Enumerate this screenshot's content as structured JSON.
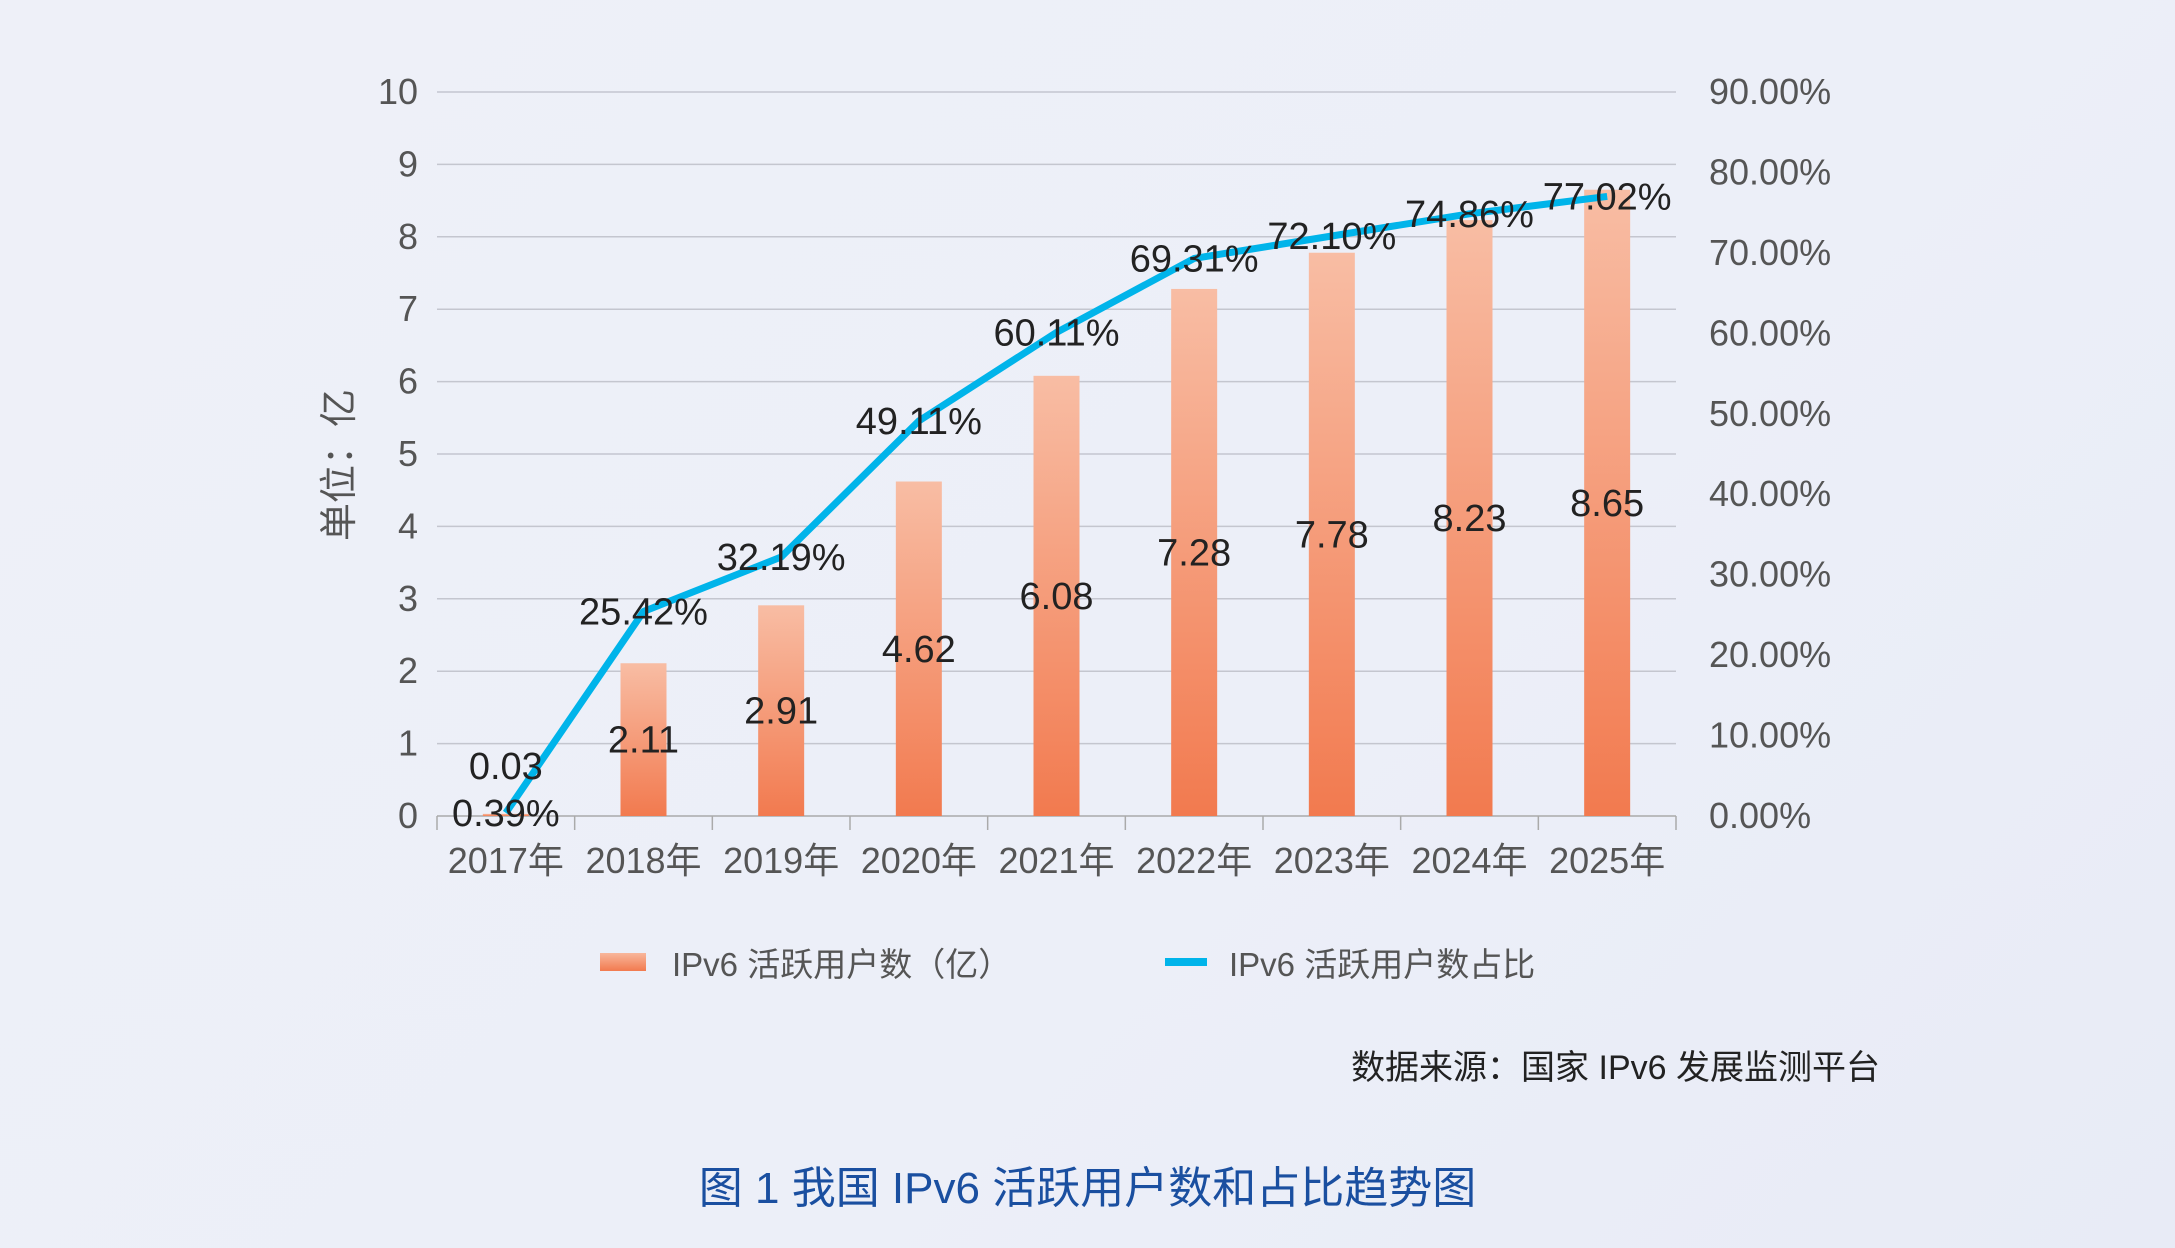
{
  "chart_data": {
    "type": "bar+line",
    "title": "图 1 我国 IPv6 活跃用户数和占比趋势图",
    "ylabel": "单位：亿",
    "categories": [
      "2017年",
      "2018年",
      "2019年",
      "2020年",
      "2021年",
      "2022年",
      "2023年",
      "2024年",
      "2025年"
    ],
    "series": [
      {
        "name": "IPv6 活跃用户数（亿）",
        "type": "bar",
        "axis": "left",
        "values": [
          0.03,
          2.11,
          2.91,
          4.62,
          6.08,
          7.28,
          7.78,
          8.23,
          8.65
        ],
        "labels": [
          "0.03",
          "2.11",
          "2.91",
          "4.62",
          "6.08",
          "7.28",
          "7.78",
          "8.23",
          "8.65"
        ]
      },
      {
        "name": "IPv6 活跃用户数占比",
        "type": "line",
        "axis": "right",
        "values": [
          0.39,
          25.42,
          32.19,
          49.11,
          60.11,
          69.31,
          72.1,
          74.86,
          77.02
        ],
        "labels": [
          "0.39%",
          "25.42%",
          "32.19%",
          "49.11%",
          "60.11%",
          "69.31%",
          "72.10%",
          "74.86%",
          "77.02%"
        ]
      }
    ],
    "ylim": [
      0,
      10
    ],
    "y2lim": [
      0,
      90
    ],
    "yticks": [
      "0",
      "1",
      "2",
      "3",
      "4",
      "5",
      "6",
      "7",
      "8",
      "9",
      "10"
    ],
    "y2ticks": [
      "0.00%",
      "10.00%",
      "20.00%",
      "30.00%",
      "40.00%",
      "50.00%",
      "60.00%",
      "70.00%",
      "80.00%",
      "90.00%"
    ],
    "grid": true,
    "legend_position": "bottom",
    "colors": {
      "bar_top": "#f8b89d",
      "bar_bottom": "#f27a4f",
      "line": "#00b4ea",
      "title": "#1a4fa0"
    },
    "source": "数据来源：国家 IPv6 发展监测平台"
  }
}
